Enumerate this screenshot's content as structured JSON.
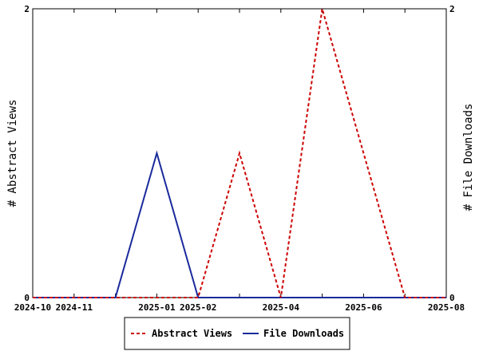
{
  "chart_data": {
    "type": "line",
    "title": "",
    "x": [
      "2024-10",
      "2024-11",
      "2024-12",
      "2025-01",
      "2025-02",
      "2025-03",
      "2025-04",
      "2025-05",
      "2025-06",
      "2025-07",
      "2025-08"
    ],
    "x_ticks": [
      "2024-10",
      "2024-11",
      "2025-01",
      "2025-02",
      "2025-04",
      "2025-06",
      "2025-08"
    ],
    "xlim": [
      "2024-10",
      "2025-08"
    ],
    "ylabel_left": "# Abstract Views",
    "ylabel_right": "# File Downloads",
    "ylim_left": [
      0,
      2
    ],
    "ylim_right": [
      0,
      2
    ],
    "y_ticks_left": [
      "0",
      "2"
    ],
    "y_ticks_right": [
      "0",
      "2"
    ],
    "grid": false,
    "legend_position": "bottom",
    "series": [
      {
        "name": "Abstract Views",
        "axis": "left",
        "color": "#cc0000",
        "style": "dashed",
        "values": [
          0,
          0,
          0,
          0,
          0,
          1,
          0,
          2,
          1,
          0,
          0
        ]
      },
      {
        "name": "File Downloads",
        "axis": "right",
        "color": "#1a2a9c",
        "style": "solid",
        "values": [
          0,
          0,
          0,
          1,
          0,
          0,
          0,
          0,
          0,
          0,
          0
        ]
      }
    ]
  }
}
